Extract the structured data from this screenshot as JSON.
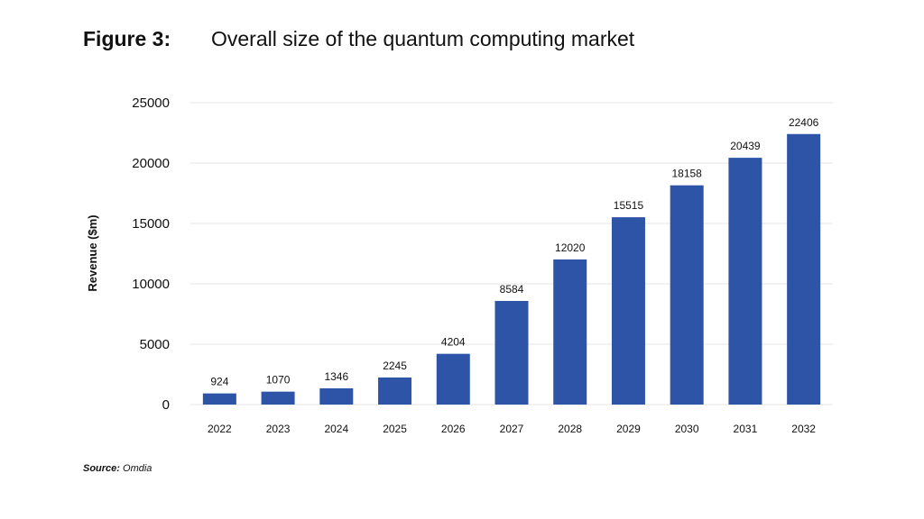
{
  "figure": {
    "label": "Figure 3:",
    "title": "Overall size of the quantum computing market"
  },
  "source": {
    "prefix": "Source:",
    "text": "Omdia"
  },
  "colors": {
    "bar": "#2E54A7",
    "grid": "#e4e4e4"
  },
  "chart_data": {
    "type": "bar",
    "title": "Overall size of the quantum computing market",
    "xlabel": "",
    "ylabel": "Revenue ($m)",
    "categories": [
      "2022",
      "2023",
      "2024",
      "2025",
      "2026",
      "2027",
      "2028",
      "2029",
      "2030",
      "2031",
      "2032"
    ],
    "values": [
      924,
      1070,
      1346,
      2245,
      4204,
      8584,
      12020,
      15515,
      18158,
      20439,
      22406
    ],
    "ylim": [
      0,
      25000
    ],
    "yticks": [
      0,
      5000,
      10000,
      15000,
      20000,
      25000
    ],
    "grid": true,
    "legend": "none"
  }
}
